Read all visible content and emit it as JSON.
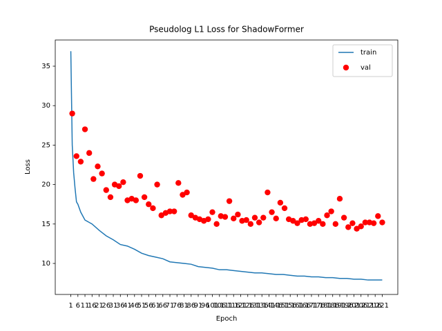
{
  "chart_data": {
    "type": "line",
    "title": "Pseudolog L1 Loss for ShadowFormer",
    "x_label": "Epoch",
    "y_label": "Loss",
    "xlim": [
      -10,
      232
    ],
    "ylim": [
      6.07,
      38.32
    ],
    "xticks": [
      1,
      6,
      11,
      16,
      21,
      26,
      31,
      36,
      41,
      46,
      51,
      56,
      61,
      66,
      71,
      76,
      81,
      86,
      91,
      96,
      101,
      106,
      111,
      116,
      121,
      126,
      131,
      136,
      141,
      146,
      151,
      156,
      161,
      166,
      171,
      176,
      181,
      186,
      191,
      196,
      201,
      206,
      211,
      216,
      221
    ],
    "yticks": [
      10,
      15,
      20,
      25,
      30,
      35
    ],
    "legend": "upper right",
    "series": [
      {
        "name": "train",
        "type": "line",
        "color": "#1f77b4",
        "x": [
          1,
          2,
          3,
          4,
          5,
          6,
          8,
          11,
          16,
          21,
          26,
          31,
          36,
          41,
          46,
          51,
          56,
          61,
          66,
          71,
          76,
          81,
          86,
          91,
          96,
          101,
          106,
          111,
          116,
          121,
          126,
          131,
          136,
          141,
          146,
          151,
          156,
          161,
          166,
          171,
          176,
          181,
          186,
          191,
          196,
          201,
          206,
          211,
          216,
          221
        ],
        "values": [
          36.9,
          25,
          21.5,
          19.5,
          17.8,
          17.5,
          16.5,
          15.5,
          15,
          14.2,
          13.5,
          13,
          12.4,
          12.2,
          11.8,
          11.3,
          11.0,
          10.8,
          10.6,
          10.2,
          10.1,
          10.0,
          9.9,
          9.6,
          9.5,
          9.4,
          9.2,
          9.2,
          9.1,
          9.0,
          8.9,
          8.8,
          8.8,
          8.7,
          8.6,
          8.6,
          8.5,
          8.4,
          8.4,
          8.3,
          8.3,
          8.2,
          8.2,
          8.1,
          8.1,
          8.0,
          8.0,
          7.9,
          7.9,
          7.9
        ]
      },
      {
        "name": "val",
        "type": "scatter",
        "color": "#ff0000",
        "x": [
          2,
          5,
          8,
          11,
          14,
          17,
          20,
          23,
          26,
          29,
          32,
          35,
          38,
          41,
          44,
          47,
          50,
          53,
          56,
          59,
          62,
          65,
          68,
          71,
          74,
          77,
          80,
          83,
          86,
          89,
          92,
          95,
          98,
          101,
          104,
          107,
          110,
          113,
          116,
          119,
          122,
          125,
          128,
          131,
          134,
          137,
          140,
          143,
          146,
          149,
          152,
          155,
          158,
          161,
          164,
          167,
          170,
          173,
          176,
          179,
          182,
          185,
          188,
          191,
          194,
          197,
          200,
          203,
          206,
          209,
          212,
          215,
          218,
          221
        ],
        "values": [
          29.0,
          23.6,
          22.9,
          27.0,
          24.0,
          20.7,
          22.3,
          21.4,
          19.3,
          18.4,
          20.0,
          19.8,
          20.3,
          18.0,
          18.2,
          18.0,
          21.1,
          18.4,
          17.5,
          17.0,
          20.0,
          16.1,
          16.4,
          16.6,
          16.6,
          20.2,
          18.7,
          19.0,
          16.1,
          15.8,
          15.6,
          15.4,
          15.6,
          16.5,
          15.0,
          16.0,
          15.9,
          17.9,
          15.7,
          16.2,
          15.4,
          15.5,
          15.0,
          15.8,
          15.2,
          15.8,
          19.0,
          16.5,
          15.7,
          17.7,
          17.0,
          15.6,
          15.4,
          15.1,
          15.5,
          15.6,
          15.0,
          15.1,
          15.4,
          15.0,
          16.1,
          16.6,
          15.0,
          18.2,
          15.8,
          14.6,
          15.1,
          14.4,
          14.7,
          15.2,
          15.2,
          15.1,
          16.0,
          15.2
        ]
      }
    ]
  }
}
